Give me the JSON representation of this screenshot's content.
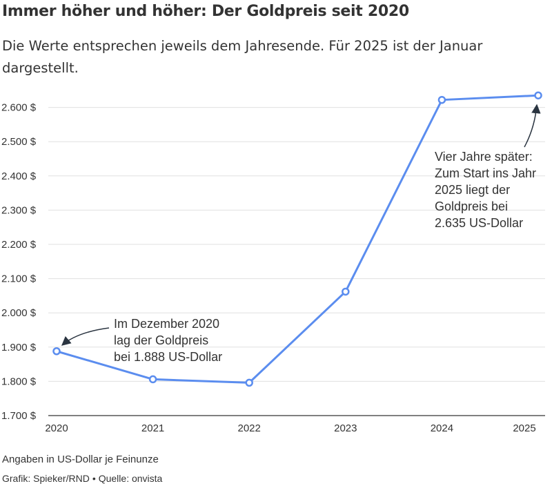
{
  "title": "Immer höher und höher: Der Goldpreis seit 2020",
  "subtitle": "Die Werte entsprechen jeweils dem Jahresende. Für 2025 ist der Januar dargestellt.",
  "colors": {
    "line": "#5b8def",
    "grid": "#e0e0e0",
    "axis": "#333333",
    "text": "#333333"
  },
  "chart_data": {
    "type": "line",
    "x": [
      "2020",
      "2021",
      "2022",
      "2023",
      "2024",
      "2025"
    ],
    "series": [
      {
        "values": [
          1888,
          1806,
          1796,
          2062,
          2622,
          2635
        ]
      }
    ],
    "ylim": [
      1700,
      2650
    ],
    "yticks": [
      1700,
      1800,
      1900,
      2000,
      2100,
      2200,
      2300,
      2400,
      2500,
      2600
    ],
    "ytick_labels": [
      "1.700 $",
      "1.800 $",
      "1.900 $",
      "2.000 $",
      "2.100 $",
      "2.200 $",
      "2.300 $",
      "2.400 $",
      "2.500 $",
      "2.600 $"
    ],
    "grid": true,
    "annotations": [
      {
        "x": "2020",
        "y": 1888,
        "lines": [
          "Im Dezember 2020",
          "lag der Goldpreis",
          "bei 1.888 US-Dollar"
        ]
      },
      {
        "x": "2025",
        "y": 2635,
        "lines": [
          "Vier Jahre später:",
          "Zum Start ins Jahr",
          "2025 liegt der",
          "Goldpreis bei",
          "2.635 US-Dollar"
        ]
      }
    ]
  },
  "footer": {
    "unit_note": "Angaben in US-Dollar je Feinunze",
    "graphic": "Grafik: Spieker/RND",
    "bullet": "•",
    "source": "Quelle: onvista"
  }
}
